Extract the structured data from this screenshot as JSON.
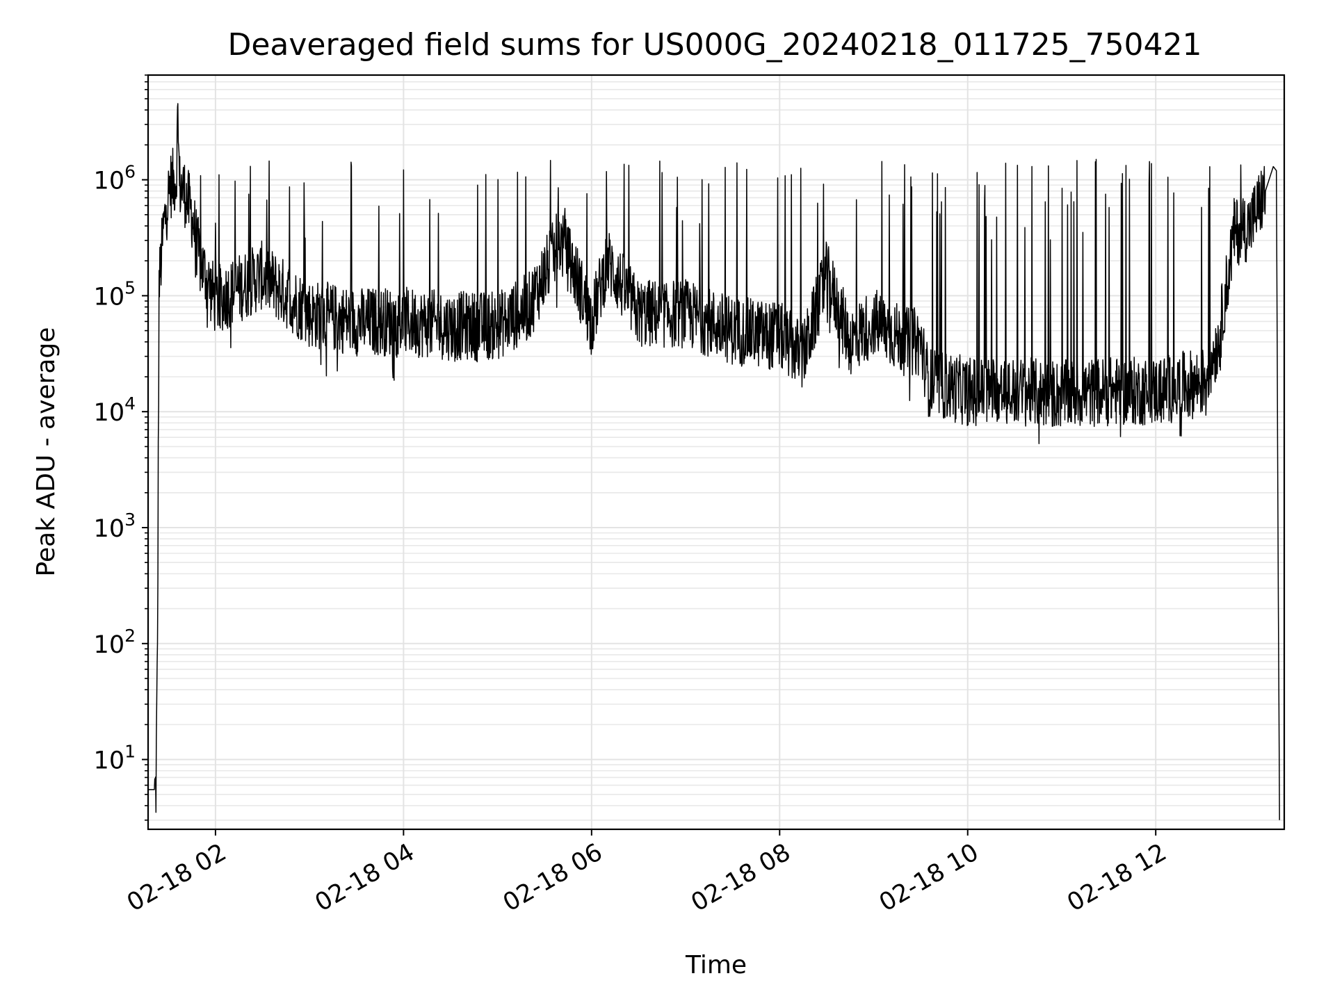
{
  "chart_data": {
    "type": "line",
    "title": "Deaveraged field sums for US000G_20240218_011725_750421",
    "xlabel": "Time",
    "ylabel": "Peak ADU - average",
    "yscale": "log",
    "ylim": [
      2.5,
      8000000
    ],
    "xlim": [
      "2024-02-18 01:17",
      "2024-02-18 13:22"
    ],
    "grid": "on (major and minor)",
    "line_color": "#000000",
    "x_ticks": [
      {
        "label": "02-18 02",
        "time": "2024-02-18 02:00"
      },
      {
        "label": "02-18 04",
        "time": "2024-02-18 04:00"
      },
      {
        "label": "02-18 06",
        "time": "2024-02-18 06:00"
      },
      {
        "label": "02-18 08",
        "time": "2024-02-18 08:00"
      },
      {
        "label": "02-18 10",
        "time": "2024-02-18 10:00"
      },
      {
        "label": "02-18 12",
        "time": "2024-02-18 12:00"
      }
    ],
    "y_ticks": [
      {
        "base": "10",
        "exp": "1",
        "value": 10
      },
      {
        "base": "10",
        "exp": "2",
        "value": 100
      },
      {
        "base": "10",
        "exp": "3",
        "value": 1000
      },
      {
        "base": "10",
        "exp": "4",
        "value": 10000
      },
      {
        "base": "10",
        "exp": "5",
        "value": 100000
      },
      {
        "base": "10",
        "exp": "6",
        "value": 1000000
      }
    ],
    "series": [
      {
        "x": [
          "2024-02-18 01:17",
          "2024-02-18 01:22",
          "2024-02-18 01:23",
          "2024-02-18 01:24",
          "2024-02-18 01:27",
          "2024-02-18 01:31",
          "2024-02-18 01:35",
          "2024-02-18 01:36",
          "2024-02-18 01:37",
          "2024-02-18 01:40",
          "2024-02-18 01:45",
          "2024-02-18 01:50",
          "2024-02-18 02:00",
          "2024-02-18 02:30",
          "2024-02-18 03:00",
          "2024-02-18 03:30",
          "2024-02-18 04:00",
          "2024-02-18 04:30",
          "2024-02-18 05:00",
          "2024-02-18 05:20",
          "2024-02-18 05:40",
          "2024-02-18 05:50",
          "2024-02-18 06:00",
          "2024-02-18 06:10",
          "2024-02-18 06:30",
          "2024-02-18 07:00",
          "2024-02-18 07:30",
          "2024-02-18 08:00",
          "2024-02-18 08:15",
          "2024-02-18 08:30",
          "2024-02-18 08:45",
          "2024-02-18 09:00",
          "2024-02-18 09:20",
          "2024-02-18 09:30",
          "2024-02-18 09:35",
          "2024-02-18 10:00",
          "2024-02-18 10:30",
          "2024-02-18 11:00",
          "2024-02-18 11:30",
          "2024-02-18 12:00",
          "2024-02-18 12:30",
          "2024-02-18 12:40",
          "2024-02-18 12:50",
          "2024-02-18 13:00",
          "2024-02-18 13:10",
          "2024-02-18 13:15",
          "2024-02-18 13:17",
          "2024-02-18 13:18",
          "2024-02-18 13:19"
        ],
        "y": [
          5.5,
          5.5,
          90,
          120000,
          400000,
          900000,
          1000000,
          4000000,
          900000,
          800000,
          500000,
          200000,
          90000,
          150000,
          70000,
          60000,
          60000,
          55000,
          55000,
          80000,
          300000,
          150000,
          60000,
          200000,
          70000,
          70000,
          50000,
          45000,
          30000,
          150000,
          40000,
          60000,
          40000,
          40000,
          18000,
          15000,
          15000,
          14000,
          15000,
          15000,
          18000,
          40000,
          350000,
          400000,
          800000,
          1300000,
          1200000,
          1000,
          3
        ]
      }
    ]
  }
}
